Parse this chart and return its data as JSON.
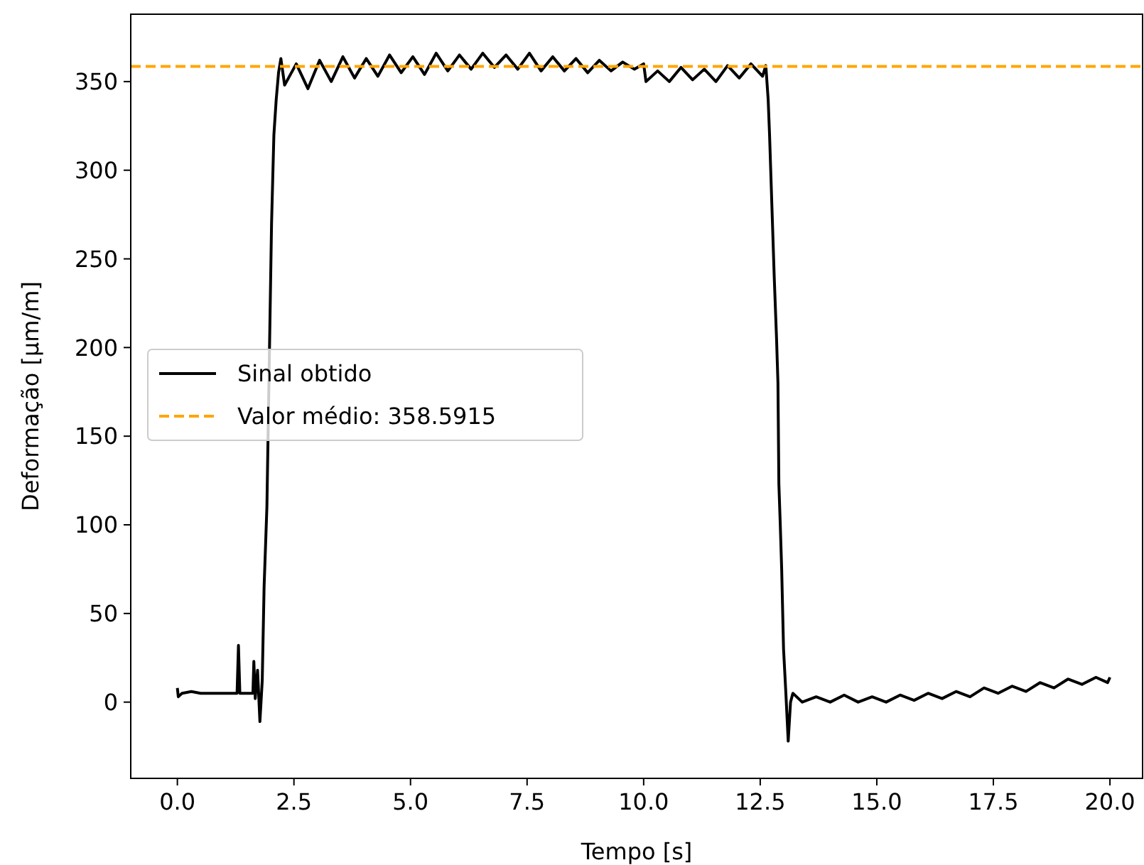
{
  "chart_data": {
    "type": "line",
    "xlabel": "Tempo [s]",
    "ylabel": "Deformação [μm/m]",
    "xlim": [
      -1,
      20.7
    ],
    "ylim": [
      -43,
      388
    ],
    "xticks": [
      {
        "value": 0,
        "label": "0.0"
      },
      {
        "value": 2.5,
        "label": "2.5"
      },
      {
        "value": 5,
        "label": "5.0"
      },
      {
        "value": 7.5,
        "label": "7.5"
      },
      {
        "value": 10,
        "label": "10.0"
      },
      {
        "value": 12.5,
        "label": "12.5"
      },
      {
        "value": 15,
        "label": "15.0"
      },
      {
        "value": 17.5,
        "label": "17.5"
      },
      {
        "value": 20,
        "label": "20.0"
      }
    ],
    "yticks": [
      0,
      50,
      100,
      150,
      200,
      250,
      300,
      350
    ],
    "legend": "center left",
    "grid": false,
    "line_style": "solid",
    "ref_lines": [
      {
        "axis": "y",
        "value": 358.5915,
        "label": "Valor médio: 358.5915",
        "color": "#ffa500",
        "line_style": "dashed"
      }
    ],
    "series": [
      {
        "name": "Sinal obtido",
        "color": "#000000",
        "x": [
          0,
          0.02,
          0.1,
          0.3,
          0.5,
          0.8,
          1.1,
          1.28,
          1.31,
          1.34,
          1.5,
          1.62,
          1.64,
          1.67,
          1.72,
          1.77,
          1.82,
          1.86,
          1.92,
          1.97,
          2.02,
          2.07,
          2.12,
          2.17,
          2.22,
          2.3,
          2.55,
          2.8,
          3.05,
          3.3,
          3.55,
          3.8,
          4.05,
          4.3,
          4.55,
          4.8,
          5.05,
          5.3,
          5.55,
          5.8,
          6.05,
          6.3,
          6.55,
          6.8,
          7.05,
          7.3,
          7.55,
          7.8,
          8.05,
          8.3,
          8.55,
          8.8,
          9.05,
          9.3,
          9.55,
          9.8,
          10.0,
          10.05,
          10.3,
          10.55,
          10.8,
          11.05,
          11.3,
          11.55,
          11.8,
          12.05,
          12.3,
          12.55,
          12.62,
          12.67,
          12.7,
          12.75,
          12.8,
          12.85,
          12.88,
          12.9,
          12.93,
          12.96,
          13.0,
          13.05,
          13.1,
          13.15,
          13.2,
          13.4,
          13.7,
          14.0,
          14.3,
          14.6,
          14.9,
          15.2,
          15.5,
          15.8,
          16.1,
          16.4,
          16.7,
          17.0,
          17.3,
          17.6,
          17.9,
          18.2,
          18.5,
          18.8,
          19.1,
          19.4,
          19.7,
          19.95,
          20.0
        ],
        "values": [
          8,
          3,
          5,
          6,
          5,
          5,
          5,
          5,
          32,
          5,
          5,
          5,
          23,
          2,
          18,
          -11,
          12,
          65,
          110,
          null,
          270,
          320,
          340,
          355,
          363,
          348,
          360,
          346,
          362,
          350,
          364,
          352,
          363,
          353,
          365,
          355,
          364,
          354,
          366,
          356,
          365,
          357,
          366,
          358,
          365,
          357,
          366,
          356,
          364,
          356,
          363,
          355,
          362,
          356,
          361,
          357,
          360,
          350,
          356,
          350,
          358,
          351,
          357,
          350,
          359,
          352,
          360,
          353,
          359,
          340,
          320,
          280,
          240,
          205,
          180,
          123,
          100,
          75,
          30,
          5,
          -22,
          0,
          5,
          0,
          3,
          0,
          4,
          0,
          3,
          0,
          4,
          1,
          5,
          2,
          6,
          3,
          8,
          5,
          9,
          6,
          11,
          8,
          13,
          10,
          14,
          11,
          14
        ]
      }
    ]
  }
}
